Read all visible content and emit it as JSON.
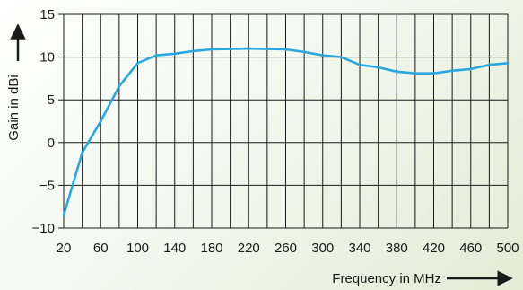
{
  "chart_data": {
    "type": "line",
    "xlabel": "Frequency in MHz",
    "ylabel": "Gain in dBi",
    "x_ticks": [
      20,
      60,
      100,
      140,
      180,
      220,
      260,
      300,
      340,
      380,
      420,
      460,
      500
    ],
    "y_ticks": [
      15,
      10,
      5,
      0,
      -5,
      -10
    ],
    "y_tick_labels": [
      "15",
      "10",
      "5",
      "0",
      "−5",
      "−10"
    ],
    "xlim": [
      20,
      500
    ],
    "ylim": [
      -10,
      15
    ],
    "grid": true,
    "series": [
      {
        "color": "#29a8e0",
        "x": [
          20,
          40,
          60,
          80,
          100,
          120,
          140,
          160,
          180,
          200,
          220,
          240,
          260,
          280,
          300,
          320,
          340,
          360,
          380,
          400,
          420,
          440,
          460,
          480,
          500
        ],
        "y": [
          -8.5,
          -1.2,
          2.5,
          6.6,
          9.3,
          10.2,
          10.4,
          10.7,
          10.9,
          10.95,
          11.0,
          10.95,
          10.9,
          10.6,
          10.2,
          10.0,
          9.1,
          8.8,
          8.3,
          8.1,
          8.1,
          8.4,
          8.6,
          9.1,
          9.3
        ]
      }
    ]
  },
  "colors": {
    "grid": "#1a1a1a",
    "line": "#29a8e0",
    "arrow": "#1a1a1a"
  }
}
